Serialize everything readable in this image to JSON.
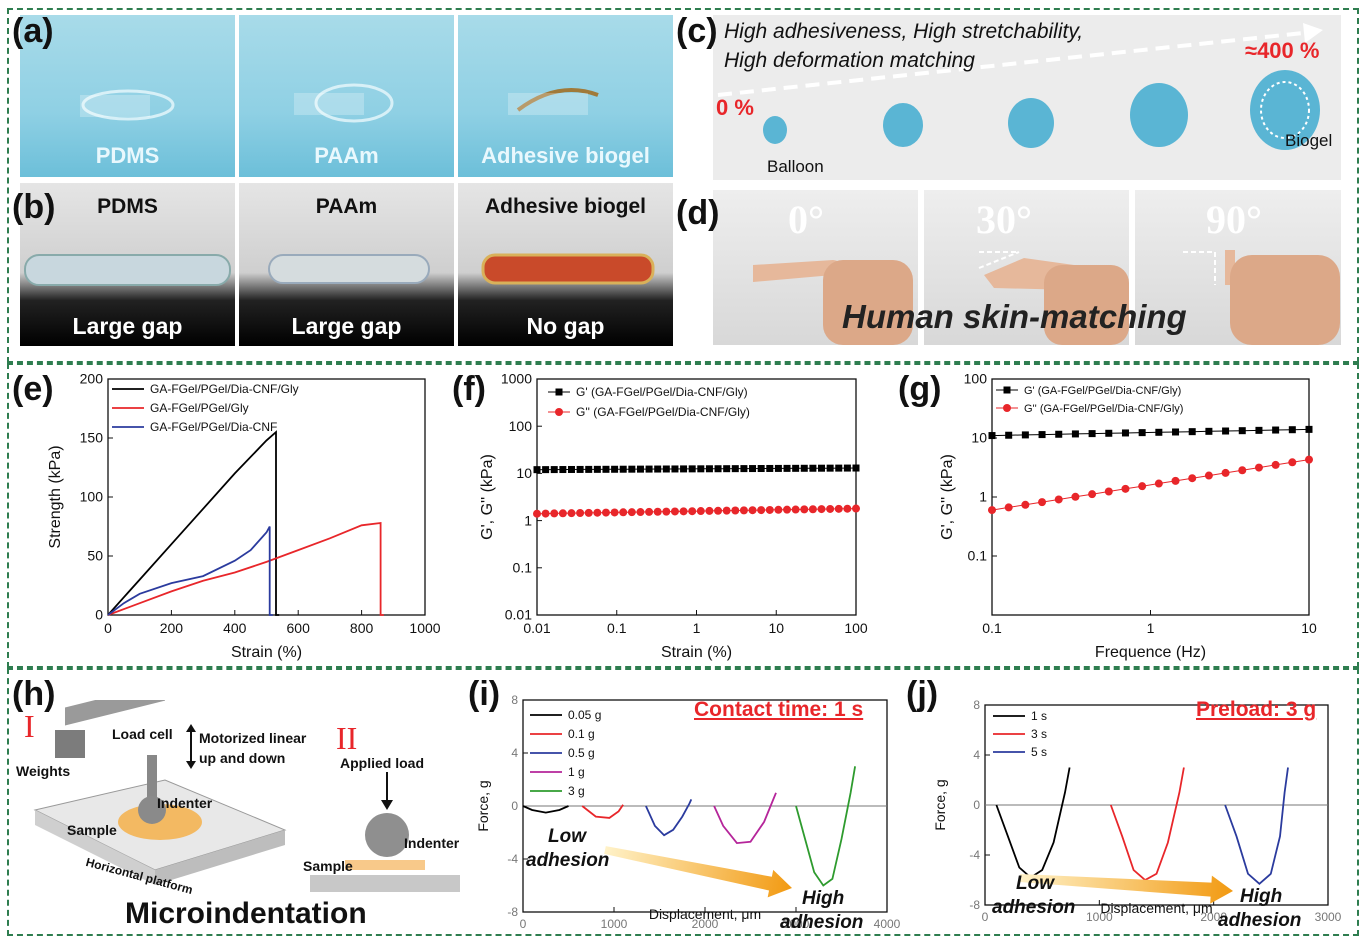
{
  "panels": {
    "a": {
      "letter": "(a)",
      "labels": [
        "PDMS",
        "PAAm",
        "Adhesive biogel"
      ]
    },
    "b": {
      "letter": "(b)",
      "titles": [
        "PDMS",
        "PAAm",
        "Adhesive biogel"
      ],
      "gaps": [
        "Large gap",
        "Large gap",
        "No gap"
      ]
    },
    "c": {
      "letter": "(c)",
      "line1": "High adhesiveness, High stretchability,",
      "line2": "High deformation matching",
      "start_pct": "0 %",
      "end_pct": "≈400 %",
      "balloon": "Balloon",
      "biogel": "Biogel"
    },
    "d": {
      "letter": "(d)",
      "angles": [
        "0°",
        "30°",
        "90°"
      ],
      "caption": "Human skin-matching"
    },
    "e": {
      "letter": "(e)"
    },
    "f": {
      "letter": "(f)"
    },
    "g": {
      "letter": "(g)"
    },
    "h": {
      "letter": "(h)",
      "roman1": "I",
      "roman2": "II",
      "load_cell": "Load cell",
      "motor1": "Motorized linear",
      "motor2": "up and down",
      "weights": "Weights",
      "indenter": "Indenter",
      "sample": "Sample",
      "platform": "Horizontal platform",
      "applied": "Applied load",
      "indenter2": "Indenter",
      "sample2": "Sample",
      "title": "Microindentation"
    },
    "i": {
      "letter": "(i)",
      "headline": "Contact time: 1 s",
      "low1": "Low",
      "low2": "adhesion",
      "high1": "High",
      "high2": "adhesion"
    },
    "j": {
      "letter": "(j)",
      "headline": "Preload: 3 g",
      "low1": "Low",
      "low2": "adhesion",
      "high1": "High",
      "high2": "adhesion"
    }
  },
  "colors": {
    "black": "#000000",
    "red": "#e8262a",
    "blue": "#2b3b9e",
    "purple": "#b5259a",
    "green": "#2e9b2e",
    "frame": "#2e7d4f",
    "accent_red": "#e8262a"
  },
  "chart_data": [
    {
      "id": "e",
      "type": "line",
      "xlabel": "Strain (%)",
      "ylabel": "Strength (kPa)",
      "xlim": [
        0,
        1000
      ],
      "ylim": [
        0,
        200
      ],
      "xticks": [
        0,
        200,
        400,
        600,
        800,
        1000
      ],
      "yticks": [
        0,
        50,
        100,
        150,
        200
      ],
      "series": [
        {
          "name": "GA-FGel/PGel/Dia-CNF/Gly",
          "color": "#000000",
          "x": [
            0,
            50,
            100,
            200,
            300,
            400,
            500,
            530,
            530,
            540
          ],
          "y": [
            0,
            15,
            30,
            60,
            90,
            120,
            148,
            155,
            0,
            0
          ]
        },
        {
          "name": "GA-FGel/PGel/Gly",
          "color": "#e8262a",
          "x": [
            0,
            100,
            200,
            300,
            400,
            500,
            600,
            700,
            800,
            860,
            860,
            870
          ],
          "y": [
            0,
            10,
            20,
            29,
            36,
            45,
            55,
            65,
            76,
            78,
            0,
            0
          ]
        },
        {
          "name": "GA-FGel/PGel/Dia-CNF",
          "color": "#2b3b9e",
          "x": [
            0,
            50,
            100,
            200,
            300,
            400,
            450,
            500,
            510,
            510,
            520
          ],
          "y": [
            0,
            10,
            18,
            27,
            33,
            46,
            55,
            70,
            75,
            0,
            0
          ]
        }
      ]
    },
    {
      "id": "f",
      "type": "scatter",
      "xlabel": "Strain (%)",
      "ylabel": "G', G'' (kPa)",
      "xscale": "log",
      "yscale": "log",
      "xlim": [
        0.01,
        100
      ],
      "ylim": [
        0.01,
        1000
      ],
      "xticks": [
        "0.01",
        "0.1",
        "1",
        "10",
        "100"
      ],
      "yticks": [
        "0.01",
        "0.1",
        "1",
        "10",
        "100",
        "1000"
      ],
      "series": [
        {
          "name": "G' (GA-FGel/PGel/Dia-CNF/Gly)",
          "color": "#000000",
          "marker": "square",
          "x_range": [
            0.01,
            100
          ],
          "y_start": 12,
          "y_end": 13,
          "points": 38
        },
        {
          "name": "G'' (GA-FGel/PGel/Dia-CNF/Gly)",
          "color": "#e8262a",
          "marker": "circle",
          "x_range": [
            0.01,
            100
          ],
          "y_start": 1.4,
          "y_end": 1.8,
          "points": 38
        }
      ]
    },
    {
      "id": "g",
      "type": "scatter",
      "xlabel": "Frequence (Hz)",
      "ylabel": "G', G'' (kPa)",
      "xscale": "log",
      "yscale": "log",
      "xlim": [
        0.1,
        10
      ],
      "ylim": [
        0.01,
        100
      ],
      "xticks": [
        "0.1",
        "1",
        "10"
      ],
      "yticks": [
        "0.1",
        "1",
        "10",
        "100"
      ],
      "series": [
        {
          "name": "G' (GA-FGel/PGel/Dia-CNF/Gly)",
          "color": "#000000",
          "marker": "square",
          "x_range": [
            0.1,
            10
          ],
          "y_start": 11,
          "y_end": 14,
          "points": 20
        },
        {
          "name": "G'' (GA-FGel/PGel/Dia-CNF/Gly)",
          "color": "#e8262a",
          "marker": "circle",
          "x_range": [
            0.1,
            10
          ],
          "y_start": 0.6,
          "y_end": 4.3,
          "points": 20
        }
      ]
    },
    {
      "id": "i",
      "type": "line",
      "xlabel": "Displacement, μm",
      "ylabel": "Force, g",
      "xlim": [
        0,
        4000
      ],
      "ylim": [
        -8,
        8
      ],
      "xticks": [
        0,
        1000,
        2000,
        3000,
        4000
      ],
      "yticks": [
        -8,
        -4,
        0,
        4,
        8
      ],
      "series": [
        {
          "name": "0.05 g",
          "color": "#000000",
          "x": [
            0,
            100,
            250,
            400,
            500
          ],
          "y": [
            0,
            -0.3,
            -0.5,
            -0.3,
            0
          ]
        },
        {
          "name": "0.1 g",
          "color": "#e8262a",
          "x": [
            650,
            800,
            950,
            1050,
            1100
          ],
          "y": [
            0,
            -0.8,
            -0.9,
            -0.4,
            0.1
          ]
        },
        {
          "name": "0.5 g",
          "color": "#2b3b9e",
          "x": [
            1350,
            1450,
            1550,
            1650,
            1750,
            1830,
            1850
          ],
          "y": [
            0,
            -1.5,
            -2.2,
            -1.8,
            -0.8,
            0.2,
            0.5
          ]
        },
        {
          "name": "1 g",
          "color": "#b5259a",
          "x": [
            2100,
            2200,
            2350,
            2500,
            2650,
            2750,
            2780
          ],
          "y": [
            0,
            -1.5,
            -2.8,
            -2.7,
            -1.2,
            0.5,
            1.0
          ]
        },
        {
          "name": "3 g",
          "color": "#2e9b2e",
          "x": [
            3000,
            3100,
            3200,
            3300,
            3400,
            3500,
            3600,
            3650
          ],
          "y": [
            0,
            -2.5,
            -5,
            -6,
            -5.5,
            -2.5,
            1,
            3
          ]
        }
      ]
    },
    {
      "id": "j",
      "type": "line",
      "xlabel": "Displacement, μm",
      "ylabel": "Force, g",
      "xlim": [
        0,
        3000
      ],
      "ylim": [
        -8,
        8
      ],
      "xticks": [
        0,
        1000,
        2000,
        3000
      ],
      "yticks": [
        -8,
        -4,
        0,
        4,
        8
      ],
      "series": [
        {
          "name": "1 s",
          "color": "#000000",
          "x": [
            100,
            200,
            300,
            400,
            500,
            600,
            700,
            740
          ],
          "y": [
            0,
            -2.5,
            -5,
            -5.8,
            -5.2,
            -3,
            1,
            3
          ]
        },
        {
          "name": "3 s",
          "color": "#e8262a",
          "x": [
            1100,
            1200,
            1300,
            1400,
            1500,
            1600,
            1700,
            1740
          ],
          "y": [
            0,
            -2.5,
            -5.2,
            -6,
            -5.5,
            -3,
            1,
            3
          ]
        },
        {
          "name": "5 s",
          "color": "#2b3b9e",
          "x": [
            2100,
            2200,
            2300,
            2400,
            2500,
            2580,
            2620,
            2650
          ],
          "y": [
            0,
            -2.5,
            -5.5,
            -6.3,
            -5.5,
            -2.5,
            1,
            3
          ]
        }
      ]
    }
  ]
}
